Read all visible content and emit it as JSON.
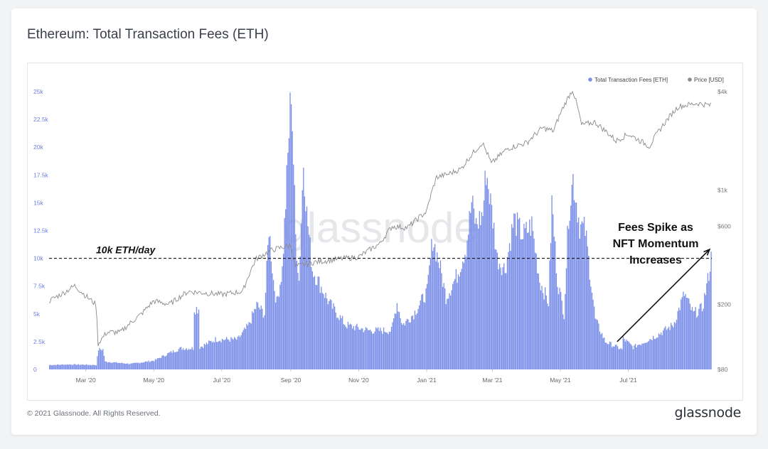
{
  "title": "Ethereum: Total Transaction Fees (ETH)",
  "footer": {
    "copyright": "© 2021 Glassnode. All Rights Reserved.",
    "brand": "glassnode"
  },
  "watermark": "glassnode",
  "colors": {
    "bars": "#7b8fe8",
    "price_line": "#8a8a8a",
    "left_axis": "#6e80e0",
    "right_axis": "#777777",
    "annotation": "#111111"
  },
  "chart_data": {
    "type": "bar",
    "title": "Ethereum: Total Transaction Fees (ETH)",
    "x_range": [
      "2020-01-28",
      "2021-09-13"
    ],
    "x_ticks": [
      {
        "label": "Mar '20",
        "date": "2020-03-01"
      },
      {
        "label": "May '20",
        "date": "2020-05-01"
      },
      {
        "label": "Jul '20",
        "date": "2020-07-01"
      },
      {
        "label": "Sep '20",
        "date": "2020-09-01"
      },
      {
        "label": "Nov '20",
        "date": "2020-11-01"
      },
      {
        "label": "Jan '21",
        "date": "2021-01-01"
      },
      {
        "label": "Mar '21",
        "date": "2021-03-01"
      },
      {
        "label": "May '21",
        "date": "2021-05-01"
      },
      {
        "label": "Jul '21",
        "date": "2021-07-01"
      }
    ],
    "y_left": {
      "min": 0,
      "max": 25000,
      "ticks": [
        "0",
        "2.5k",
        "5k",
        "7.5k",
        "10k",
        "12.5k",
        "15k",
        "17.5k",
        "20k",
        "22.5k",
        "25k"
      ],
      "tick_values": [
        0,
        2500,
        5000,
        7500,
        10000,
        12500,
        15000,
        17500,
        20000,
        22500,
        25000
      ]
    },
    "y_right": {
      "scale": "log",
      "min": 80,
      "max": 4000,
      "ticks": [
        "$80",
        "$200",
        "$600",
        "$1k",
        "$4k"
      ],
      "tick_values": [
        80,
        200,
        600,
        1000,
        4000
      ]
    },
    "legend": {
      "placement": "top-right",
      "entries": [
        "Total Transaction Fees [ETH]",
        "Price [USD]"
      ]
    },
    "reference_line": {
      "value": 10000,
      "label": "10k ETH/day"
    },
    "annotation": {
      "lines": [
        "Fees Spike as",
        "NFT Momentum",
        "Increases"
      ],
      "arrow_from": {
        "date": "2021-06-21",
        "value": 2500
      },
      "arrow_to": {
        "date": "2021-09-12",
        "value": 10800
      }
    },
    "series": [
      {
        "name": "Total Transaction Fees [ETH]",
        "kind": "bar",
        "anchors": [
          [
            "2020-01-28",
            400
          ],
          [
            "2020-02-15",
            450
          ],
          [
            "2020-03-10",
            400
          ],
          [
            "2020-03-12",
            1800
          ],
          [
            "2020-03-16",
            1800
          ],
          [
            "2020-03-18",
            700
          ],
          [
            "2020-04-10",
            500
          ],
          [
            "2020-05-01",
            800
          ],
          [
            "2020-05-15",
            1500
          ],
          [
            "2020-05-25",
            1900
          ],
          [
            "2020-06-05",
            1900
          ],
          [
            "2020-06-06",
            5500
          ],
          [
            "2020-06-10",
            5500
          ],
          [
            "2020-06-11",
            2000
          ],
          [
            "2020-06-25",
            2700
          ],
          [
            "2020-07-15",
            2700
          ],
          [
            "2020-07-25",
            4000
          ],
          [
            "2020-08-01",
            5800
          ],
          [
            "2020-08-08",
            5000
          ],
          [
            "2020-08-12",
            12800
          ],
          [
            "2020-08-16",
            8000
          ],
          [
            "2020-08-19",
            6000
          ],
          [
            "2020-08-24",
            9000
          ],
          [
            "2020-08-28",
            17000
          ],
          [
            "2020-09-01",
            25500
          ],
          [
            "2020-09-05",
            12000
          ],
          [
            "2020-09-08",
            8000
          ],
          [
            "2020-09-12",
            18800
          ],
          [
            "2020-09-15",
            14000
          ],
          [
            "2020-09-20",
            9000
          ],
          [
            "2020-10-05",
            6000
          ],
          [
            "2020-10-20",
            4000
          ],
          [
            "2020-11-10",
            3500
          ],
          [
            "2020-11-30",
            3500
          ],
          [
            "2020-12-05",
            6000
          ],
          [
            "2020-12-10",
            4000
          ],
          [
            "2020-12-20",
            5000
          ],
          [
            "2021-01-01",
            7000
          ],
          [
            "2021-01-06",
            11800
          ],
          [
            "2021-01-12",
            9500
          ],
          [
            "2021-01-18",
            6500
          ],
          [
            "2021-01-28",
            8500
          ],
          [
            "2021-02-05",
            11000
          ],
          [
            "2021-02-10",
            15000
          ],
          [
            "2021-02-14",
            13000
          ],
          [
            "2021-02-20",
            14000
          ],
          [
            "2021-02-23",
            18000
          ],
          [
            "2021-03-01",
            13500
          ],
          [
            "2021-03-05",
            10000
          ],
          [
            "2021-03-12",
            9000
          ],
          [
            "2021-03-20",
            13500
          ],
          [
            "2021-03-28",
            12000
          ],
          [
            "2021-04-05",
            13000
          ],
          [
            "2021-04-12",
            8000
          ],
          [
            "2021-04-20",
            6000
          ],
          [
            "2021-04-23",
            15000
          ],
          [
            "2021-04-28",
            8000
          ],
          [
            "2021-05-04",
            5000
          ],
          [
            "2021-05-08",
            14000
          ],
          [
            "2021-05-12",
            17200
          ],
          [
            "2021-05-18",
            13000
          ],
          [
            "2021-05-23",
            12500
          ],
          [
            "2021-06-01",
            4500
          ],
          [
            "2021-06-10",
            2500
          ],
          [
            "2021-06-25",
            1800
          ],
          [
            "2021-06-26",
            2800
          ],
          [
            "2021-07-05",
            2000
          ],
          [
            "2021-07-15",
            2500
          ],
          [
            "2021-07-25",
            3000
          ],
          [
            "2021-08-10",
            4000
          ],
          [
            "2021-08-20",
            6800
          ],
          [
            "2021-08-28",
            5000
          ],
          [
            "2021-09-05",
            5500
          ],
          [
            "2021-09-10",
            8000
          ],
          [
            "2021-09-13",
            10000
          ]
        ]
      },
      {
        "name": "Price [USD]",
        "kind": "line",
        "axis": "right",
        "anchors": [
          [
            "2020-01-28",
            210
          ],
          [
            "2020-02-10",
            235
          ],
          [
            "2020-02-20",
            260
          ],
          [
            "2020-03-01",
            225
          ],
          [
            "2020-03-10",
            200
          ],
          [
            "2020-03-12",
            115
          ],
          [
            "2020-03-20",
            135
          ],
          [
            "2020-04-01",
            135
          ],
          [
            "2020-04-20",
            175
          ],
          [
            "2020-05-01",
            210
          ],
          [
            "2020-05-15",
            200
          ],
          [
            "2020-06-01",
            240
          ],
          [
            "2020-07-01",
            230
          ],
          [
            "2020-07-20",
            240
          ],
          [
            "2020-08-01",
            380
          ],
          [
            "2020-08-15",
            430
          ],
          [
            "2020-09-01",
            460
          ],
          [
            "2020-09-05",
            340
          ],
          [
            "2020-09-20",
            360
          ],
          [
            "2020-10-15",
            380
          ],
          [
            "2020-11-01",
            390
          ],
          [
            "2020-11-20",
            470
          ],
          [
            "2020-12-01",
            600
          ],
          [
            "2020-12-15",
            590
          ],
          [
            "2021-01-01",
            740
          ],
          [
            "2021-01-10",
            1200
          ],
          [
            "2021-01-20",
            1250
          ],
          [
            "2021-02-01",
            1350
          ],
          [
            "2021-02-20",
            1950
          ],
          [
            "2021-02-28",
            1450
          ],
          [
            "2021-03-15",
            1800
          ],
          [
            "2021-04-01",
            1950
          ],
          [
            "2021-04-15",
            2400
          ],
          [
            "2021-04-25",
            2300
          ],
          [
            "2021-05-12",
            4100
          ],
          [
            "2021-05-20",
            2500
          ],
          [
            "2021-06-01",
            2600
          ],
          [
            "2021-06-20",
            2000
          ],
          [
            "2021-07-01",
            2200
          ],
          [
            "2021-07-20",
            1850
          ],
          [
            "2021-08-05",
            2700
          ],
          [
            "2021-08-15",
            3250
          ],
          [
            "2021-09-01",
            3400
          ],
          [
            "2021-09-13",
            3300
          ]
        ]
      }
    ]
  }
}
